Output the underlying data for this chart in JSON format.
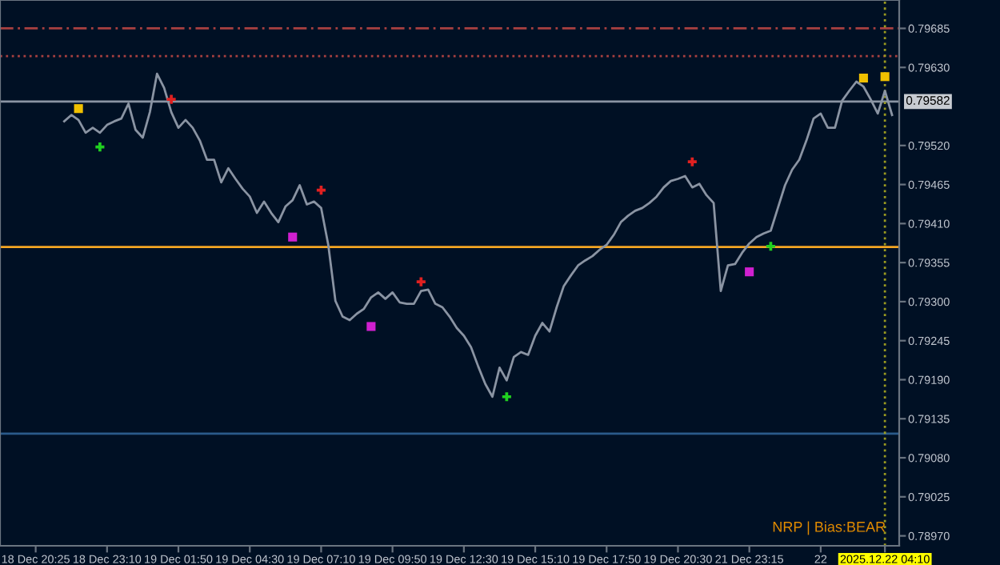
{
  "chart_data": {
    "type": "line",
    "categories": [
      "18 Dec 20:25",
      null,
      null,
      null,
      null,
      null,
      null,
      null,
      null,
      null,
      "18 Dec 23:10",
      null,
      null,
      null,
      null,
      null,
      null,
      null,
      null,
      null,
      "19 Dec 01:50",
      null,
      null,
      null,
      null,
      null,
      null,
      null,
      null,
      null,
      "19 Dec 04:30",
      null,
      null,
      null,
      null,
      null,
      null,
      null,
      null,
      null,
      "19 Dec 07:10",
      null,
      null,
      null,
      null,
      null,
      null,
      null,
      null,
      null,
      "19 Dec 09:50",
      null,
      null,
      null,
      null,
      null,
      null,
      null,
      null,
      null,
      "19 Dec 12:30",
      null,
      null,
      null,
      null,
      null,
      null,
      null,
      null,
      null,
      "19 Dec 15:10",
      null,
      null,
      null,
      null,
      null,
      null,
      null,
      null,
      null,
      "19 Dec 17:50",
      null,
      null,
      null,
      null,
      null,
      null,
      null,
      null,
      null,
      "19 Dec 20:30",
      null,
      null,
      null,
      null,
      null,
      null,
      null,
      null,
      null,
      "21 Dec 23:15",
      null,
      null,
      null,
      null,
      null,
      null,
      null,
      null,
      null,
      "22",
      null,
      null,
      null,
      null,
      null,
      null,
      null,
      null,
      "2025.12.22 04:10",
      null
    ],
    "ylim": [
      0.78956,
      0.79725
    ],
    "yticks": [
      {
        "value": 0.79685,
        "label": "0.79685"
      },
      {
        "value": 0.7963,
        "label": "0.79630"
      },
      {
        "value": 0.7952,
        "label": "0.79520"
      },
      {
        "value": 0.79465,
        "label": "0.79465"
      },
      {
        "value": 0.7941,
        "label": "0.79410"
      },
      {
        "value": 0.79355,
        "label": "0.79355"
      },
      {
        "value": 0.793,
        "label": "0.79300"
      },
      {
        "value": 0.79245,
        "label": "0.79245"
      },
      {
        "value": 0.7919,
        "label": "0.79190"
      },
      {
        "value": 0.79135,
        "label": "0.79135"
      },
      {
        "value": 0.7908,
        "label": "0.79080"
      },
      {
        "value": 0.79025,
        "label": "0.79025"
      },
      {
        "value": 0.7897,
        "label": "0.78970"
      }
    ],
    "grid": false,
    "series": [
      {
        "color": "#8a94a3",
        "values": [
          null,
          null,
          null,
          null,
          0.79554,
          0.79563,
          0.79556,
          0.79538,
          0.79545,
          0.79538,
          0.79549,
          0.79554,
          0.79558,
          0.79579,
          0.79542,
          0.79531,
          0.79567,
          0.79621,
          0.79601,
          0.79567,
          0.79545,
          0.79556,
          0.79545,
          0.79527,
          0.795,
          0.795,
          0.79468,
          0.79488,
          0.79473,
          0.79459,
          0.79448,
          0.79425,
          0.79441,
          0.79425,
          0.79412,
          0.79434,
          0.79443,
          0.79464,
          0.79437,
          0.79441,
          0.79432,
          0.7938,
          0.79301,
          0.79279,
          0.79274,
          0.79283,
          0.7929,
          0.79306,
          0.79313,
          0.79304,
          0.79313,
          0.79299,
          0.79297,
          0.79297,
          0.79315,
          0.79317,
          0.79297,
          0.79292,
          0.79279,
          0.79263,
          0.79252,
          0.79236,
          0.79209,
          0.79184,
          0.79166,
          0.79207,
          0.79189,
          0.79222,
          0.79229,
          0.79225,
          0.79252,
          0.7927,
          0.79258,
          0.79292,
          0.79322,
          0.79337,
          0.79351,
          0.79358,
          0.79364,
          0.79373,
          0.7938,
          0.79394,
          0.79412,
          0.79421,
          0.79428,
          0.79432,
          0.79439,
          0.79448,
          0.79461,
          0.7947,
          0.79473,
          0.79477,
          0.79461,
          0.79466,
          0.7945,
          0.79439,
          0.79315,
          0.79351,
          0.79353,
          0.79369,
          0.79382,
          0.79391,
          0.79396,
          0.794,
          0.79432,
          0.79464,
          0.79486,
          0.795,
          0.79527,
          0.79558,
          0.79565,
          0.79545,
          0.79545,
          0.79583,
          0.79597,
          0.7961,
          0.79603,
          0.79585,
          0.79565,
          0.79597,
          0.79563
        ]
      },
      {
        "type": "scatter",
        "color": "#e02020",
        "marker": "cross",
        "values": [
          null,
          null,
          null,
          null,
          null,
          null,
          null,
          null,
          null,
          null,
          null,
          null,
          null,
          null,
          null,
          null,
          null,
          null,
          null,
          0.79585,
          null,
          null,
          null,
          null,
          null,
          null,
          null,
          null,
          null,
          null,
          null,
          null,
          null,
          null,
          null,
          null,
          null,
          null,
          null,
          null,
          0.79457,
          null,
          null,
          null,
          null,
          null,
          null,
          null,
          null,
          null,
          null,
          null,
          null,
          null,
          0.79328,
          null,
          null,
          null,
          null,
          null,
          null,
          null,
          null,
          null,
          null,
          null,
          null,
          null,
          null,
          null,
          null,
          null,
          null,
          null,
          null,
          null,
          null,
          null,
          null,
          null,
          null,
          null,
          null,
          null,
          null,
          null,
          null,
          null,
          null,
          null,
          null,
          null,
          0.79497,
          null,
          null,
          null,
          null,
          null,
          null,
          null,
          null,
          null,
          null,
          null,
          null,
          null,
          null,
          null,
          null,
          null,
          null,
          null,
          null,
          null,
          null,
          null,
          null,
          null,
          null,
          null,
          null
        ]
      },
      {
        "type": "scatter",
        "color": "#20d020",
        "marker": "cross",
        "values": [
          null,
          null,
          null,
          null,
          null,
          null,
          null,
          null,
          null,
          0.79518,
          null,
          null,
          null,
          null,
          null,
          null,
          null,
          null,
          null,
          null,
          null,
          null,
          null,
          null,
          null,
          null,
          null,
          null,
          null,
          null,
          null,
          null,
          null,
          null,
          null,
          null,
          null,
          null,
          null,
          null,
          null,
          null,
          null,
          null,
          null,
          null,
          null,
          null,
          null,
          null,
          null,
          null,
          null,
          null,
          null,
          null,
          null,
          null,
          null,
          null,
          null,
          null,
          null,
          null,
          null,
          null,
          0.79166,
          null,
          null,
          null,
          null,
          null,
          null,
          null,
          null,
          null,
          null,
          null,
          null,
          null,
          null,
          null,
          null,
          null,
          null,
          null,
          null,
          null,
          null,
          null,
          null,
          null,
          null,
          null,
          null,
          null,
          null,
          null,
          null,
          null,
          null,
          null,
          null,
          0.79378,
          null,
          null,
          null,
          null,
          null,
          null,
          null,
          null,
          null,
          null,
          null,
          null,
          null,
          null,
          null,
          null,
          null
        ]
      },
      {
        "type": "scatter",
        "color": "#d020d0",
        "marker": "square",
        "values": [
          null,
          null,
          null,
          null,
          null,
          null,
          null,
          null,
          null,
          null,
          null,
          null,
          null,
          null,
          null,
          null,
          null,
          null,
          null,
          null,
          null,
          null,
          null,
          null,
          null,
          null,
          null,
          null,
          null,
          null,
          null,
          null,
          null,
          null,
          null,
          null,
          0.79391,
          null,
          null,
          null,
          null,
          null,
          null,
          null,
          null,
          null,
          null,
          0.79265,
          null,
          null,
          null,
          null,
          null,
          null,
          null,
          null,
          null,
          null,
          null,
          null,
          null,
          null,
          null,
          null,
          null,
          null,
          null,
          null,
          null,
          null,
          null,
          null,
          null,
          null,
          null,
          null,
          null,
          null,
          null,
          null,
          null,
          null,
          null,
          null,
          null,
          null,
          null,
          null,
          null,
          null,
          null,
          null,
          null,
          null,
          null,
          null,
          null,
          null,
          null,
          null,
          0.79342,
          null,
          null,
          null,
          null,
          null,
          null,
          null,
          null,
          null,
          null,
          null,
          null,
          null,
          null,
          null,
          null,
          null,
          null,
          null,
          null
        ]
      },
      {
        "type": "scatter",
        "color": "#f0c000",
        "marker": "square",
        "values": [
          null,
          null,
          null,
          null,
          null,
          null,
          0.79572,
          null,
          null,
          null,
          null,
          null,
          null,
          null,
          null,
          null,
          null,
          null,
          null,
          null,
          null,
          null,
          null,
          null,
          null,
          null,
          null,
          null,
          null,
          null,
          null,
          null,
          null,
          null,
          null,
          null,
          null,
          null,
          null,
          null,
          null,
          null,
          null,
          null,
          null,
          null,
          null,
          null,
          null,
          null,
          null,
          null,
          null,
          null,
          null,
          null,
          null,
          null,
          null,
          null,
          null,
          null,
          null,
          null,
          null,
          null,
          null,
          null,
          null,
          null,
          null,
          null,
          null,
          null,
          null,
          null,
          null,
          null,
          null,
          null,
          null,
          null,
          null,
          null,
          null,
          null,
          null,
          null,
          null,
          null,
          null,
          null,
          null,
          null,
          null,
          null,
          null,
          null,
          null,
          null,
          null,
          null,
          null,
          null,
          null,
          null,
          null,
          null,
          null,
          null,
          null,
          null,
          null,
          null,
          null,
          null,
          0.79615,
          null,
          null,
          0.79617,
          null
        ]
      }
    ],
    "ref_lines": [
      {
        "axis": "y",
        "value": 0.79685,
        "color": "#a84040",
        "line_style": "dashed"
      },
      {
        "axis": "y",
        "value": 0.79646,
        "color": "#a84040",
        "line_style": "dotted"
      },
      {
        "axis": "y",
        "value": 0.79582,
        "label": "0.79582",
        "color": "#8a94a3",
        "line_style": "solid"
      },
      {
        "axis": "y",
        "value": 0.79377,
        "color": "#f5a623",
        "line_style": "solid"
      },
      {
        "axis": "y",
        "value": 0.79114,
        "color": "#2a5a8a",
        "line_style": "solid"
      },
      {
        "axis": "x",
        "value": "2025.12.22 04:10",
        "color": "#9a9a20",
        "line_style": "dotted"
      }
    ],
    "annotations": [
      "NRP | Bias:BEAR"
    ]
  }
}
